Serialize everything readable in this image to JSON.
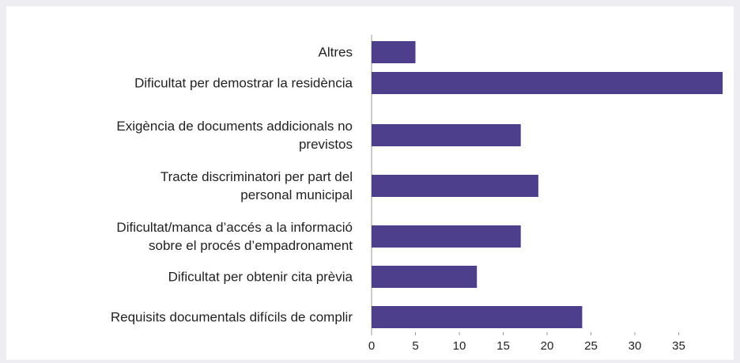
{
  "chart_data": {
    "type": "bar",
    "orientation": "horizontal",
    "categories": [
      "Altres",
      "Dificultat per demostrar la residència",
      "Exigència de documents addicionals no\nprevistos",
      "Tracte discriminatori per part del\npersonal municipal",
      "Dificultat/manca d’accés a la informació\nsobre el procés d’empadronament",
      "Dificultat per obtenir cita prèvia",
      "Requisits documentals difícils de complir"
    ],
    "values": [
      5,
      40,
      17,
      19,
      17,
      12,
      24
    ],
    "color": "#4d3f8c",
    "xlim": [
      0,
      40
    ],
    "xticks": [
      0,
      5,
      10,
      15,
      20,
      25,
      30,
      35
    ],
    "grid": false
  }
}
